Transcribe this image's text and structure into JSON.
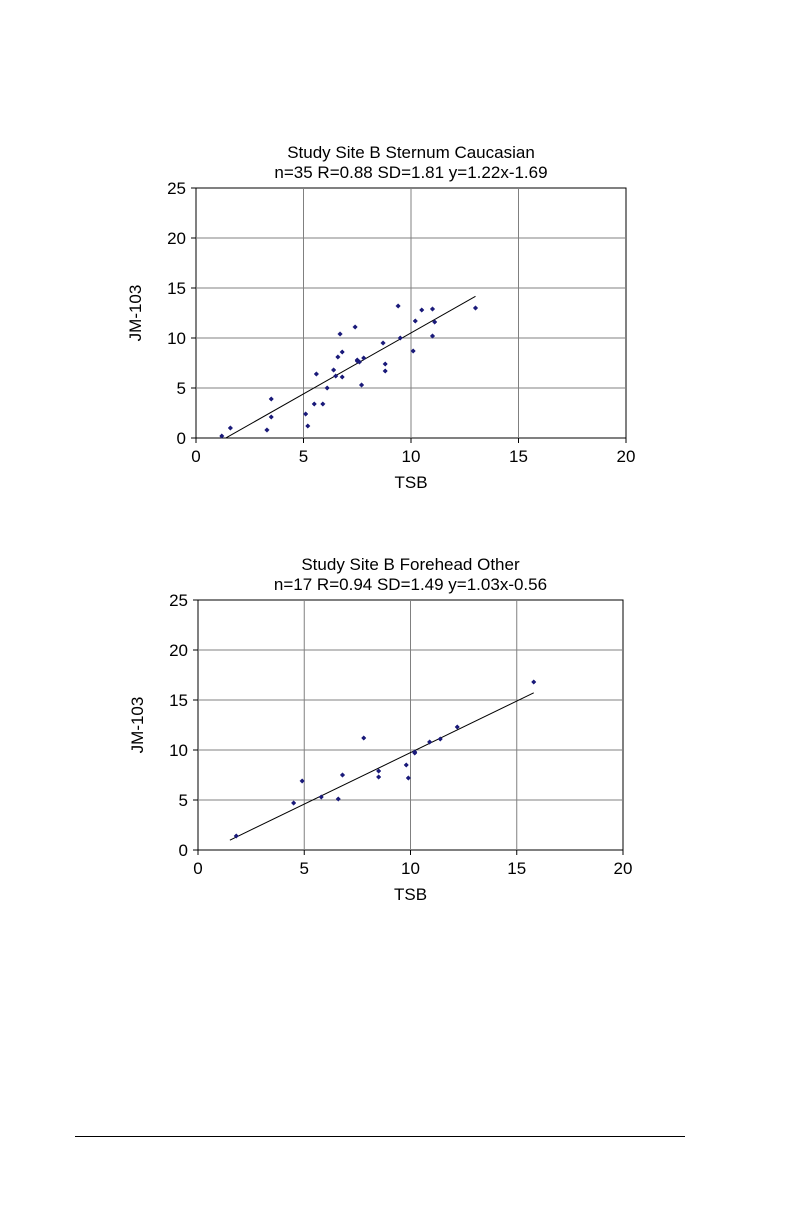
{
  "chart_data": [
    {
      "type": "scatter",
      "title": "Study Site B Sternum Caucasian",
      "subtitle": "n=35 R=0.88 SD=1.81 y=1.22x-1.69",
      "xlabel": "TSB",
      "ylabel": "JM-103",
      "xlim": [
        0,
        20
      ],
      "ylim": [
        0,
        25
      ],
      "xticks": [
        0,
        5,
        10,
        15,
        20
      ],
      "yticks": [
        0,
        5,
        10,
        15,
        20,
        25
      ],
      "grid": true,
      "marker_color": "#1a1a7a",
      "trendline": {
        "slope": 1.22,
        "intercept": -1.69,
        "x_range": [
          1.4,
          13.0
        ]
      },
      "points": [
        [
          1.2,
          0.2
        ],
        [
          1.6,
          1.0
        ],
        [
          3.3,
          0.8
        ],
        [
          3.5,
          2.1
        ],
        [
          3.5,
          3.9
        ],
        [
          5.1,
          2.4
        ],
        [
          5.2,
          1.2
        ],
        [
          5.5,
          3.4
        ],
        [
          5.6,
          6.4
        ],
        [
          5.9,
          3.4
        ],
        [
          6.1,
          5.0
        ],
        [
          6.4,
          6.8
        ],
        [
          6.5,
          6.2
        ],
        [
          6.6,
          8.1
        ],
        [
          6.7,
          10.4
        ],
        [
          6.8,
          6.1
        ],
        [
          6.8,
          8.6
        ],
        [
          7.4,
          11.1
        ],
        [
          7.5,
          7.7
        ],
        [
          7.6,
          7.6
        ],
        [
          7.7,
          5.3
        ],
        [
          7.8,
          8.0
        ],
        [
          8.7,
          9.5
        ],
        [
          8.8,
          7.4
        ],
        [
          8.8,
          6.7
        ],
        [
          9.4,
          13.2
        ],
        [
          9.5,
          10.0
        ],
        [
          10.1,
          8.7
        ],
        [
          10.2,
          11.7
        ],
        [
          10.5,
          12.8
        ],
        [
          11.0,
          12.9
        ],
        [
          11.0,
          10.2
        ],
        [
          11.1,
          11.6
        ],
        [
          13.0,
          13.0
        ],
        [
          7.5,
          7.8
        ]
      ]
    },
    {
      "type": "scatter",
      "title": "Study Site B Forehead Other",
      "subtitle": "n=17 R=0.94 SD=1.49 y=1.03x-0.56",
      "xlabel": "TSB",
      "ylabel": "JM-103",
      "xlim": [
        0,
        20
      ],
      "ylim": [
        0,
        25
      ],
      "xticks": [
        0,
        5,
        10,
        15,
        20
      ],
      "yticks": [
        0,
        5,
        10,
        15,
        20,
        25
      ],
      "grid": true,
      "marker_color": "#1a1a7a",
      "trendline": {
        "slope": 1.03,
        "intercept": -0.56,
        "x_range": [
          1.5,
          15.8
        ]
      },
      "points": [
        [
          1.8,
          1.4
        ],
        [
          4.5,
          4.7
        ],
        [
          4.9,
          6.9
        ],
        [
          5.8,
          5.3
        ],
        [
          6.6,
          5.1
        ],
        [
          6.8,
          7.5
        ],
        [
          7.8,
          11.2
        ],
        [
          8.5,
          7.9
        ],
        [
          8.5,
          7.3
        ],
        [
          9.8,
          8.5
        ],
        [
          9.9,
          7.2
        ],
        [
          10.2,
          9.8
        ],
        [
          10.9,
          10.8
        ],
        [
          11.4,
          11.1
        ],
        [
          12.2,
          12.3
        ],
        [
          15.8,
          16.8
        ],
        [
          10.2,
          9.7
        ]
      ]
    }
  ]
}
